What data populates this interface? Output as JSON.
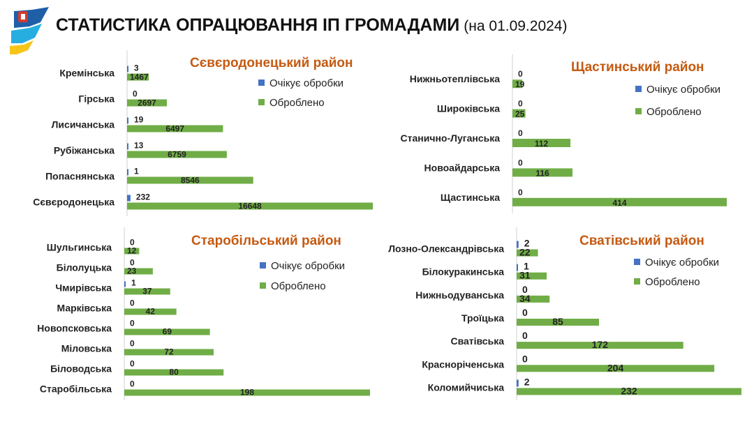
{
  "header": {
    "title": "СТАТИСТИКА ОПРАЦЮВАННЯ ІП ГРОМАДАМИ",
    "date": "(на 01.09.2024)"
  },
  "colors": {
    "pending": "#4472c4",
    "processed": "#70ad47",
    "title": "#c55a11"
  },
  "chart_data": [
    {
      "type": "bar",
      "orientation": "horizontal",
      "title": "Сєвєродонецький район",
      "categories": [
        "Кремінська",
        "Гірська",
        "Лисичанська",
        "Рубіжанська",
        "Попаснянська",
        "Сєвєродонецька"
      ],
      "series": [
        {
          "name": "Очікує обробки",
          "values": [
            3,
            0,
            19,
            13,
            1,
            232
          ]
        },
        {
          "name": "Оброблено",
          "values": [
            1467,
            2697,
            6497,
            6759,
            8546,
            16648
          ]
        }
      ],
      "legend": "right"
    },
    {
      "type": "bar",
      "orientation": "horizontal",
      "title": "Щастинський район",
      "categories": [
        "Нижньотеплівська",
        "Широківська",
        "Станично-Луганська",
        "Новоайдарська",
        "Щастинська"
      ],
      "series": [
        {
          "name": "Очікує обробки",
          "values": [
            0,
            0,
            0,
            0,
            0
          ]
        },
        {
          "name": "Оброблено",
          "values": [
            19,
            25,
            112,
            116,
            414
          ]
        }
      ],
      "legend": "right"
    },
    {
      "type": "bar",
      "orientation": "horizontal",
      "title": "Старобільський район",
      "categories": [
        "Шульгинська",
        "Білолуцька",
        "Чмирівська",
        "Марківська",
        "Новопсковська",
        "Міловська",
        "Біловодська",
        "Старобільська"
      ],
      "series": [
        {
          "name": "Очікує обробки",
          "values": [
            0,
            0,
            1,
            0,
            0,
            0,
            0,
            0
          ]
        },
        {
          "name": "Оброблено",
          "values": [
            12,
            23,
            37,
            42,
            69,
            72,
            80,
            198
          ]
        }
      ],
      "legend": "right"
    },
    {
      "type": "bar",
      "orientation": "horizontal",
      "title": "Сватівський район",
      "categories": [
        "Лозно-Олександрівська",
        "Білокуракинська",
        "Нижньодуванська",
        "Троїцька",
        "Сватівська",
        "Красноріченська",
        "Коломийчиська"
      ],
      "series": [
        {
          "name": "Очікує обробки",
          "values": [
            2,
            1,
            0,
            0,
            0,
            0,
            2
          ]
        },
        {
          "name": "Оброблено",
          "values": [
            22,
            31,
            34,
            85,
            172,
            204,
            232
          ]
        }
      ],
      "legend": "right"
    }
  ]
}
